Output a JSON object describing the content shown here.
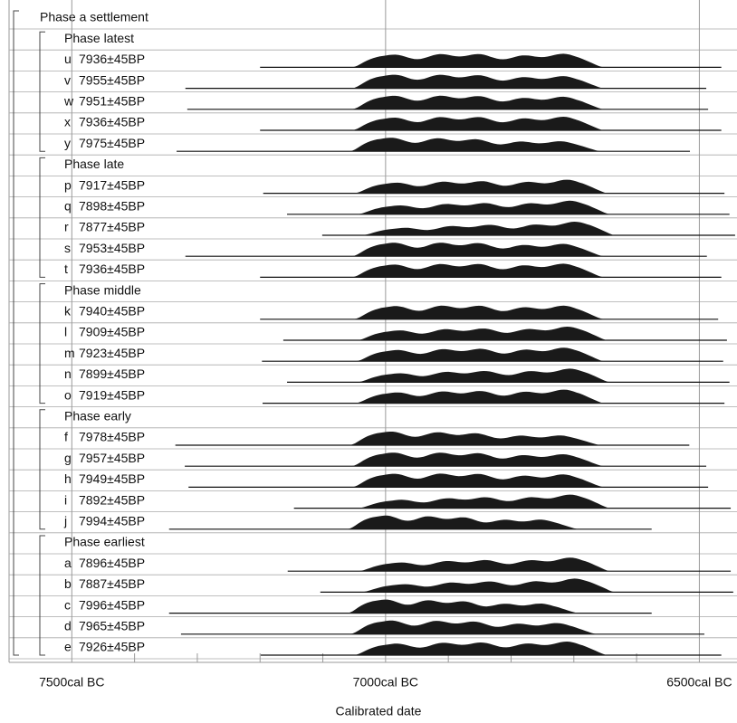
{
  "chart_data": {
    "type": "multiplot",
    "model_title": "Phase a settlement",
    "xlabel": "Calibrated date",
    "xlim": [
      7600,
      6440
    ],
    "xticks": [
      {
        "value": 7500,
        "label": "7500cal BC"
      },
      {
        "value": 7000,
        "label": "7000cal BC"
      },
      {
        "value": 6500,
        "label": "6500cal BC"
      }
    ],
    "minor_xticks": [
      7400,
      7300,
      7200,
      7100,
      6900,
      6800,
      6700,
      6600
    ],
    "grid": true,
    "color": "#1a1a1a",
    "groups": [
      {
        "name": "Phase latest",
        "samples": [
          {
            "id": "u",
            "date": "7936±45BP",
            "line": [
              7200,
              6465
            ],
            "area": [
              7055,
              6651
            ]
          },
          {
            "id": "v",
            "date": "7955±45BP",
            "line": [
              7319,
              6489
            ],
            "area": [
              7055,
              6651
            ]
          },
          {
            "id": "w",
            "date": "7951±45BP",
            "line": [
              7316,
              6486
            ],
            "area": [
              7055,
              6651
            ]
          },
          {
            "id": "x",
            "date": "7936±45BP",
            "line": [
              7200,
              6465
            ],
            "area": [
              7055,
              6651
            ]
          },
          {
            "id": "y",
            "date": "7975±45BP",
            "line": [
              7333,
              6515
            ],
            "area": [
              7059,
              6655
            ]
          }
        ]
      },
      {
        "name": "Phase late",
        "samples": [
          {
            "id": "p",
            "date": "7917±45BP",
            "line": [
              7195,
              6460
            ],
            "area": [
              7052,
              6645
            ]
          },
          {
            "id": "q",
            "date": "7898±45BP",
            "line": [
              7157,
              6452
            ],
            "area": [
              7047,
              6641
            ]
          },
          {
            "id": "r",
            "date": "7877±45BP",
            "line": [
              7101,
              6443
            ],
            "area": [
              7040,
              6633
            ]
          },
          {
            "id": "s",
            "date": "7953±45BP",
            "line": [
              7319,
              6488
            ],
            "area": [
              7055,
              6651
            ]
          },
          {
            "id": "t",
            "date": "7936±45BP",
            "line": [
              7200,
              6465
            ],
            "area": [
              7055,
              6651
            ]
          }
        ]
      },
      {
        "name": "Phase middle",
        "samples": [
          {
            "id": "k",
            "date": "7940±45BP",
            "line": [
              7200,
              6470
            ],
            "area": [
              7052,
              6651
            ]
          },
          {
            "id": "l",
            "date": "7909±45BP",
            "line": [
              7163,
              6456
            ],
            "area": [
              7047,
              6645
            ]
          },
          {
            "id": "m",
            "date": "7923±45BP",
            "line": [
              7197,
              6462
            ],
            "area": [
              7049,
              6651
            ]
          },
          {
            "id": "n",
            "date": "7899±45BP",
            "line": [
              7157,
              6452
            ],
            "area": [
              7047,
              6641
            ]
          },
          {
            "id": "o",
            "date": "7919±45BP",
            "line": [
              7196,
              6460
            ],
            "area": [
              7050,
              6651
            ]
          }
        ]
      },
      {
        "name": "Phase early",
        "samples": [
          {
            "id": "f",
            "date": "7978±45BP",
            "line": [
              7335,
              6516
            ],
            "area": [
              7059,
              6655
            ]
          },
          {
            "id": "g",
            "date": "7957±45BP",
            "line": [
              7320,
              6489
            ],
            "area": [
              7056,
              6651
            ]
          },
          {
            "id": "h",
            "date": "7949±45BP",
            "line": [
              7314,
              6486
            ],
            "area": [
              7055,
              6651
            ]
          },
          {
            "id": "i",
            "date": "7892±45BP",
            "line": [
              7146,
              6450
            ],
            "area": [
              7045,
              6641
            ]
          },
          {
            "id": "j",
            "date": "7994±45BP",
            "line": [
              7345,
              6576
            ],
            "area": [
              7062,
              6691
            ]
          }
        ]
      },
      {
        "name": "Phase earliest",
        "samples": [
          {
            "id": "a",
            "date": "7896±45BP",
            "line": [
              7156,
              6450
            ],
            "area": [
              7045,
              6641
            ]
          },
          {
            "id": "b",
            "date": "7887±45BP",
            "line": [
              7104,
              6446
            ],
            "area": [
              7040,
              6633
            ]
          },
          {
            "id": "c",
            "date": "7996±45BP",
            "line": [
              7345,
              6576
            ],
            "area": [
              7062,
              6691
            ]
          },
          {
            "id": "d",
            "date": "7965±45BP",
            "line": [
              7326,
              6492
            ],
            "area": [
              7058,
              6662
            ]
          },
          {
            "id": "e",
            "date": "7926±45BP",
            "line": [
              7199,
              6465
            ],
            "area": [
              7052,
              6645
            ]
          }
        ]
      }
    ]
  }
}
